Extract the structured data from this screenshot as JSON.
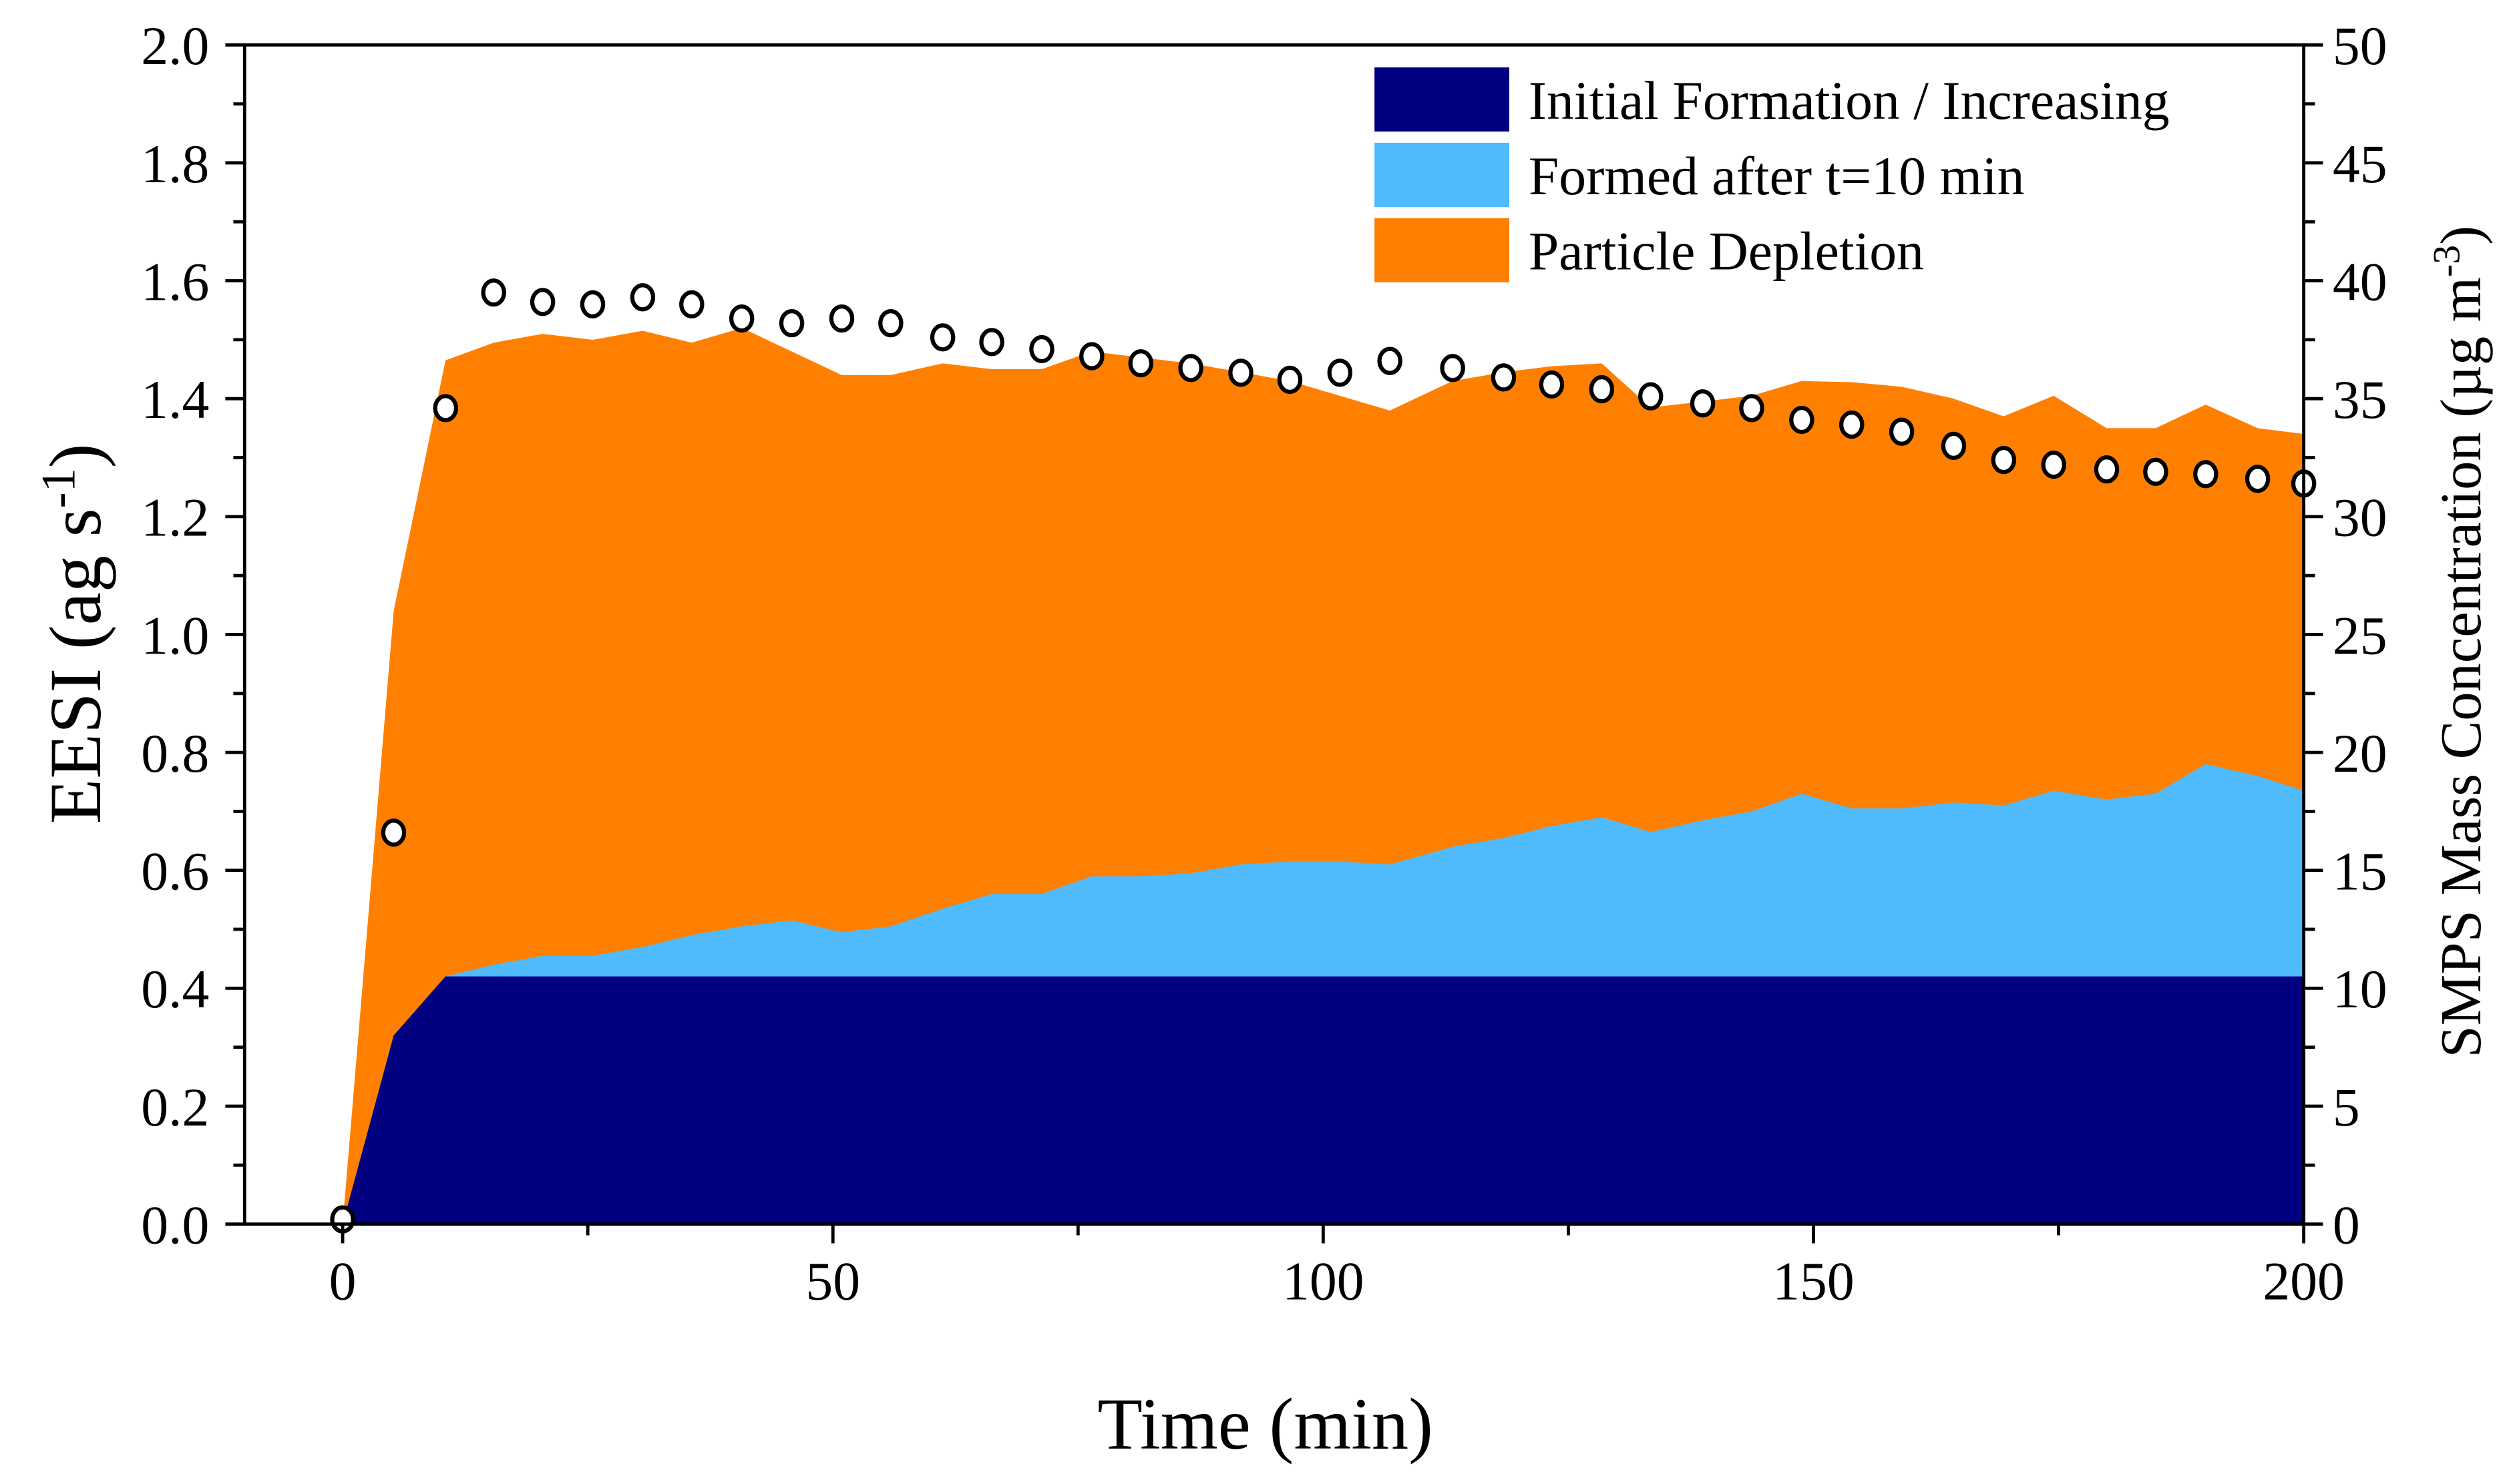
{
  "chart_data": {
    "type": "area",
    "stacked": true,
    "xlabel": "Time (min)",
    "ylabel_left": "EESI (ag s",
    "ylabel_left_sup": "-1",
    "ylabel_left_end": ")",
    "ylabel_right": "SMPS Mass Concentration (µg m",
    "ylabel_right_sup": "-3",
    "ylabel_right_end": ")",
    "xlim": [
      -10,
      200
    ],
    "ylim_left": [
      0,
      2.0
    ],
    "ylim_right": [
      0,
      50
    ],
    "x_ticks": [
      "0",
      "50",
      "100",
      "150",
      "200"
    ],
    "x_tick_values": [
      0,
      50,
      100,
      150,
      200
    ],
    "y_left_ticks": [
      "0.0",
      "0.2",
      "0.4",
      "0.6",
      "0.8",
      "1.0",
      "1.2",
      "1.4",
      "1.6",
      "1.8",
      "2.0"
    ],
    "y_right_ticks": [
      "0",
      "5",
      "10",
      "15",
      "20",
      "25",
      "30",
      "35",
      "40",
      "45",
      "50"
    ],
    "legend": {
      "placement": "top-right",
      "entries": [
        "Initial Formation / Increasing",
        "Formed after t=10 min",
        "Particle Depletion"
      ]
    },
    "x": [
      -10,
      0,
      5.2,
      10.5,
      15.4,
      20.4,
      25.5,
      30.6,
      35.6,
      40.7,
      45.8,
      50.9,
      55.9,
      61.2,
      66.2,
      71.3,
      76.4,
      81.4,
      86.5,
      91.6,
      96.6,
      101.7,
      106.8,
      113.2,
      118.4,
      123.3,
      128.4,
      133.4,
      138.7,
      143.7,
      148.8,
      153.9,
      159,
      164.3,
      169.4,
      174.5,
      179.9,
      184.9,
      190,
      195.3,
      200
    ],
    "series": [
      {
        "name": "Initial Formation / Increasing",
        "color": "#000080",
        "stacked_top": [
          0,
          0,
          0.32,
          0.42,
          0.42,
          0.42,
          0.42,
          0.42,
          0.42,
          0.42,
          0.42,
          0.42,
          0.42,
          0.42,
          0.42,
          0.42,
          0.42,
          0.42,
          0.42,
          0.42,
          0.42,
          0.42,
          0.42,
          0.42,
          0.42,
          0.42,
          0.42,
          0.42,
          0.42,
          0.42,
          0.42,
          0.42,
          0.42,
          0.42,
          0.42,
          0.42,
          0.42,
          0.42,
          0.42,
          0.42,
          0.42
        ]
      },
      {
        "name": "Formed after t=10 min",
        "color": "#4FBBFD",
        "stacked_top": [
          0,
          0,
          0.32,
          0.42,
          0.44,
          0.455,
          0.455,
          0.47,
          0.49,
          0.505,
          0.515,
          0.495,
          0.505,
          0.535,
          0.56,
          0.56,
          0.59,
          0.59,
          0.595,
          0.61,
          0.615,
          0.615,
          0.61,
          0.64,
          0.655,
          0.675,
          0.69,
          0.665,
          0.685,
          0.7,
          0.73,
          0.705,
          0.705,
          0.715,
          0.71,
          0.735,
          0.72,
          0.73,
          0.78,
          0.76,
          0.735
        ]
      },
      {
        "name": "Particle Depletion",
        "color": "#FF8000",
        "stacked_top": [
          0,
          0,
          1.04,
          1.465,
          1.495,
          1.51,
          1.5,
          1.515,
          1.495,
          1.52,
          1.48,
          1.44,
          1.44,
          1.46,
          1.45,
          1.45,
          1.48,
          1.47,
          1.46,
          1.445,
          1.43,
          1.405,
          1.38,
          1.43,
          1.445,
          1.455,
          1.46,
          1.385,
          1.395,
          1.405,
          1.43,
          1.428,
          1.42,
          1.4,
          1.37,
          1.405,
          1.35,
          1.35,
          1.39,
          1.35,
          1.34
        ]
      }
    ],
    "smps": {
      "name": "SMPS Mass Concentration",
      "axis": "right",
      "marker": "open-circle",
      "x": [
        0,
        5.2,
        10.5,
        15.4,
        20.4,
        25.5,
        30.6,
        35.6,
        40.7,
        45.8,
        50.9,
        55.9,
        61.2,
        66.2,
        71.3,
        76.4,
        81.4,
        86.5,
        91.6,
        96.6,
        101.7,
        106.8,
        113.2,
        118.4,
        123.3,
        128.4,
        133.4,
        138.7,
        143.7,
        148.8,
        153.9,
        159,
        164.3,
        169.4,
        174.5,
        179.9,
        184.9,
        190,
        195.3,
        200
      ],
      "y": [
        0.2,
        16.6,
        34.6,
        39.5,
        39.1,
        39.0,
        39.3,
        39.0,
        38.4,
        38.2,
        38.4,
        38.2,
        37.6,
        37.4,
        37.1,
        36.8,
        36.5,
        36.3,
        36.1,
        35.8,
        36.1,
        36.6,
        36.3,
        35.9,
        35.6,
        35.4,
        35.1,
        34.8,
        34.6,
        34.1,
        33.9,
        33.6,
        33.0,
        32.4,
        32.2,
        32.0,
        31.9,
        31.8,
        31.6,
        31.4
      ]
    }
  }
}
